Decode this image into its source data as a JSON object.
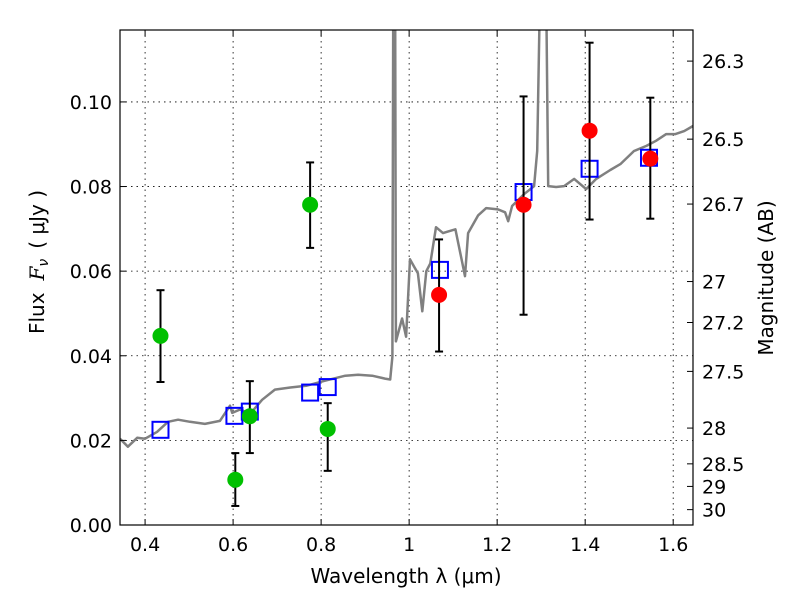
{
  "chart_data": {
    "type": "scatter",
    "title": "",
    "xlabel": "Wavelength  λ (μm)",
    "ylabel": "Flux  F_ν  ( μJy )",
    "ylabel_parts": {
      "prefix": "Flux",
      "symbol": "F",
      "subscript": "ν",
      "unit": "( μJy )"
    },
    "y2label": "Magnitude (AB)",
    "xlim": [
      0.343,
      1.645
    ],
    "ylim": [
      0.0,
      0.117
    ],
    "grid": true,
    "x_ticks": [
      0.4,
      0.6,
      0.8,
      1.0,
      1.2,
      1.4,
      1.6
    ],
    "x_tick_labels": [
      "0.4",
      "0.6",
      "0.8",
      "1",
      "1.2",
      "1.4",
      "1.6"
    ],
    "y_ticks": [
      0.0,
      0.02,
      0.04,
      0.06,
      0.08,
      0.1
    ],
    "y_tick_labels": [
      "0.00",
      "0.02",
      "0.04",
      "0.06",
      "0.08",
      "0.10"
    ],
    "y2_ticks": [
      26.3,
      26.5,
      26.7,
      27,
      27.2,
      27.5,
      28,
      28.5,
      29,
      30
    ],
    "y2_tick_labels": [
      "26.3",
      "26.5",
      "26.7",
      "27",
      "27.2",
      "27.5",
      "28",
      "28.5",
      "29",
      "30"
    ],
    "y2_zeropoint": 23.9,
    "colors": {
      "spectrum": "#808080",
      "green": "#00c000",
      "red": "#ff0000",
      "model": "#0000ff",
      "error": "#000000"
    },
    "series": [
      {
        "name": "spectrum",
        "kind": "line",
        "points": [
          [
            0.343,
            0.0204
          ],
          [
            0.361,
            0.0185
          ],
          [
            0.382,
            0.0206
          ],
          [
            0.4,
            0.0204
          ],
          [
            0.427,
            0.022
          ],
          [
            0.452,
            0.0244
          ],
          [
            0.475,
            0.0249
          ],
          [
            0.502,
            0.0244
          ],
          [
            0.536,
            0.0239
          ],
          [
            0.57,
            0.0246
          ],
          [
            0.593,
            0.0282
          ],
          [
            0.598,
            0.0265
          ],
          [
            0.616,
            0.0273
          ],
          [
            0.639,
            0.0263
          ],
          [
            0.666,
            0.0296
          ],
          [
            0.695,
            0.032
          ],
          [
            0.73,
            0.0325
          ],
          [
            0.766,
            0.0329
          ],
          [
            0.809,
            0.0341
          ],
          [
            0.855,
            0.0353
          ],
          [
            0.884,
            0.0355
          ],
          [
            0.916,
            0.0353
          ],
          [
            0.945,
            0.0346
          ],
          [
            0.957,
            0.0344
          ],
          [
            0.962,
            0.0398
          ],
          [
            0.964,
            0.13
          ],
          [
            0.968,
            0.13
          ],
          [
            0.97,
            0.0434
          ],
          [
            0.984,
            0.0488
          ],
          [
            0.993,
            0.0445
          ],
          [
            1.002,
            0.0628
          ],
          [
            1.011,
            0.0611
          ],
          [
            1.02,
            0.0595
          ],
          [
            1.03,
            0.0505
          ],
          [
            1.039,
            0.06
          ],
          [
            1.048,
            0.0618
          ],
          [
            1.061,
            0.0704
          ],
          [
            1.077,
            0.069
          ],
          [
            1.089,
            0.0694
          ],
          [
            1.105,
            0.0699
          ],
          [
            1.12,
            0.0623
          ],
          [
            1.127,
            0.0588
          ],
          [
            1.134,
            0.069
          ],
          [
            1.157,
            0.0732
          ],
          [
            1.175,
            0.0749
          ],
          [
            1.202,
            0.0746
          ],
          [
            1.218,
            0.0739
          ],
          [
            1.225,
            0.0718
          ],
          [
            1.234,
            0.0754
          ],
          [
            1.261,
            0.0782
          ],
          [
            1.284,
            0.0801
          ],
          [
            1.291,
            0.0884
          ],
          [
            1.298,
            0.13
          ],
          [
            1.311,
            0.13
          ],
          [
            1.316,
            0.0801
          ],
          [
            1.334,
            0.0799
          ],
          [
            1.352,
            0.0801
          ],
          [
            1.375,
            0.0818
          ],
          [
            1.402,
            0.0794
          ],
          [
            1.425,
            0.0818
          ],
          [
            1.457,
            0.0839
          ],
          [
            1.48,
            0.0853
          ],
          [
            1.511,
            0.0884
          ],
          [
            1.539,
            0.0896
          ],
          [
            1.561,
            0.0908
          ],
          [
            1.584,
            0.0924
          ],
          [
            1.605,
            0.0924
          ],
          [
            1.625,
            0.0931
          ],
          [
            1.645,
            0.0943
          ]
        ]
      },
      {
        "name": "observed-green",
        "kind": "errorbar",
        "points": [
          {
            "x": 0.435,
            "y": 0.0447,
            "lo": 0.0338,
            "hi": 0.0555
          },
          {
            "x": 0.605,
            "y": 0.0107,
            "lo": 0.0045,
            "hi": 0.017
          },
          {
            "x": 0.638,
            "y": 0.0257,
            "lo": 0.017,
            "hi": 0.034
          },
          {
            "x": 0.775,
            "y": 0.0757,
            "lo": 0.0655,
            "hi": 0.0857
          },
          {
            "x": 0.815,
            "y": 0.0227,
            "lo": 0.0128,
            "hi": 0.0288
          }
        ]
      },
      {
        "name": "observed-red",
        "kind": "errorbar",
        "points": [
          {
            "x": 1.068,
            "y": 0.0544,
            "lo": 0.041,
            "hi": 0.0675
          },
          {
            "x": 1.26,
            "y": 0.0757,
            "lo": 0.0497,
            "hi": 0.1013
          },
          {
            "x": 1.41,
            "y": 0.0932,
            "lo": 0.0722,
            "hi": 0.114
          },
          {
            "x": 1.548,
            "y": 0.0866,
            "lo": 0.0724,
            "hi": 0.101
          }
        ]
      },
      {
        "name": "model-photometry",
        "kind": "square",
        "points": [
          [
            0.435,
            0.0225
          ],
          [
            0.603,
            0.0258
          ],
          [
            0.638,
            0.0268
          ],
          [
            0.775,
            0.0313
          ],
          [
            0.815,
            0.0326
          ],
          [
            1.07,
            0.0603
          ],
          [
            1.26,
            0.0787
          ],
          [
            1.41,
            0.0842
          ],
          [
            1.545,
            0.0868
          ]
        ]
      }
    ]
  }
}
